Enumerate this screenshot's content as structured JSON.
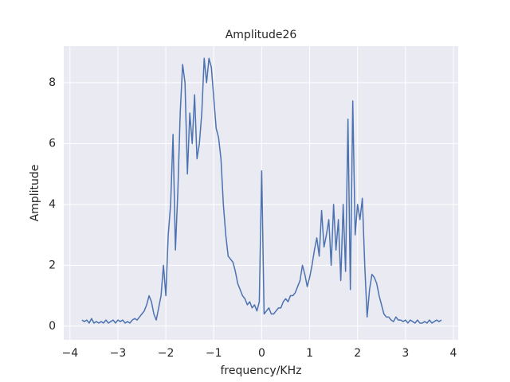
{
  "chart_data": {
    "type": "line",
    "title": "Amplitude26",
    "xlabel": "frequency/KHz",
    "ylabel": "Amplitude",
    "x": [
      -3.75,
      -3.7,
      -3.65,
      -3.6,
      -3.55,
      -3.5,
      -3.45,
      -3.4,
      -3.35,
      -3.3,
      -3.25,
      -3.2,
      -3.15,
      -3.1,
      -3.05,
      -3.0,
      -2.95,
      -2.9,
      -2.85,
      -2.8,
      -2.75,
      -2.7,
      -2.65,
      -2.6,
      -2.55,
      -2.5,
      -2.45,
      -2.4,
      -2.35,
      -2.3,
      -2.25,
      -2.2,
      -2.15,
      -2.1,
      -2.05,
      -2.0,
      -1.95,
      -1.9,
      -1.85,
      -1.8,
      -1.75,
      -1.7,
      -1.65,
      -1.6,
      -1.55,
      -1.5,
      -1.45,
      -1.4,
      -1.35,
      -1.3,
      -1.25,
      -1.2,
      -1.15,
      -1.1,
      -1.05,
      -1.0,
      -0.95,
      -0.9,
      -0.85,
      -0.8,
      -0.75,
      -0.7,
      -0.65,
      -0.6,
      -0.55,
      -0.5,
      -0.45,
      -0.4,
      -0.35,
      -0.3,
      -0.25,
      -0.2,
      -0.15,
      -0.1,
      -0.05,
      0,
      0.05,
      0.1,
      0.15,
      0.2,
      0.25,
      0.3,
      0.35,
      0.4,
      0.45,
      0.5,
      0.55,
      0.6,
      0.65,
      0.7,
      0.75,
      0.8,
      0.85,
      0.9,
      0.95,
      1.0,
      1.05,
      1.1,
      1.15,
      1.2,
      1.25,
      1.3,
      1.35,
      1.4,
      1.45,
      1.5,
      1.55,
      1.6,
      1.65,
      1.7,
      1.75,
      1.8,
      1.85,
      1.9,
      1.95,
      2.0,
      2.05,
      2.1,
      2.15,
      2.2,
      2.25,
      2.3,
      2.35,
      2.4,
      2.45,
      2.5,
      2.55,
      2.6,
      2.65,
      2.7,
      2.75,
      2.8,
      2.85,
      2.9,
      2.95,
      3.0,
      3.05,
      3.1,
      3.15,
      3.2,
      3.25,
      3.3,
      3.35,
      3.4,
      3.45,
      3.5,
      3.55,
      3.6,
      3.65,
      3.7,
      3.75
    ],
    "series": [
      {
        "color": "#4c72b0",
        "values": [
          0.2,
          0.15,
          0.2,
          0.1,
          0.25,
          0.1,
          0.15,
          0.1,
          0.15,
          0.1,
          0.2,
          0.1,
          0.15,
          0.2,
          0.1,
          0.2,
          0.15,
          0.2,
          0.1,
          0.15,
          0.1,
          0.2,
          0.25,
          0.2,
          0.3,
          0.4,
          0.5,
          0.7,
          1.0,
          0.8,
          0.4,
          0.2,
          0.6,
          1.0,
          2.0,
          1.0,
          3.0,
          4.0,
          6.3,
          2.5,
          4.4,
          7.0,
          8.6,
          8.0,
          5.0,
          7.0,
          6.0,
          7.6,
          5.5,
          6.0,
          7.0,
          8.8,
          8.0,
          8.8,
          8.5,
          7.5,
          6.5,
          6.2,
          5.5,
          4.0,
          3.0,
          2.3,
          2.2,
          2.1,
          1.8,
          1.4,
          1.2,
          1.0,
          0.9,
          0.7,
          0.8,
          0.6,
          0.7,
          0.5,
          0.8,
          5.1,
          0.4,
          0.5,
          0.6,
          0.4,
          0.4,
          0.5,
          0.6,
          0.6,
          0.8,
          0.9,
          0.8,
          1.0,
          1.0,
          1.1,
          1.3,
          1.5,
          2.0,
          1.7,
          1.3,
          1.6,
          2.0,
          2.5,
          2.9,
          2.3,
          3.8,
          2.6,
          3.0,
          3.5,
          2.0,
          4.0,
          2.5,
          3.5,
          1.5,
          4.0,
          1.8,
          6.8,
          1.2,
          7.4,
          3.0,
          4.0,
          3.5,
          4.2,
          2.0,
          0.3,
          1.2,
          1.7,
          1.6,
          1.4,
          1.0,
          0.7,
          0.4,
          0.3,
          0.3,
          0.2,
          0.15,
          0.3,
          0.2,
          0.2,
          0.15,
          0.2,
          0.1,
          0.2,
          0.15,
          0.1,
          0.2,
          0.1,
          0.1,
          0.15,
          0.1,
          0.2,
          0.1,
          0.15,
          0.2,
          0.15,
          0.2
        ]
      }
    ],
    "xlim": [
      -4.13,
      4.1
    ],
    "xticks": [
      {
        "value": -4,
        "label": "−4"
      },
      {
        "value": -3,
        "label": "−3"
      },
      {
        "value": -2,
        "label": "−2"
      },
      {
        "value": -1,
        "label": "−1"
      },
      0,
      1,
      2,
      3,
      4
    ],
    "ylim": [
      -0.45,
      9.2
    ],
    "yticks": [
      0,
      2,
      4,
      6,
      8
    ],
    "grid": true
  }
}
